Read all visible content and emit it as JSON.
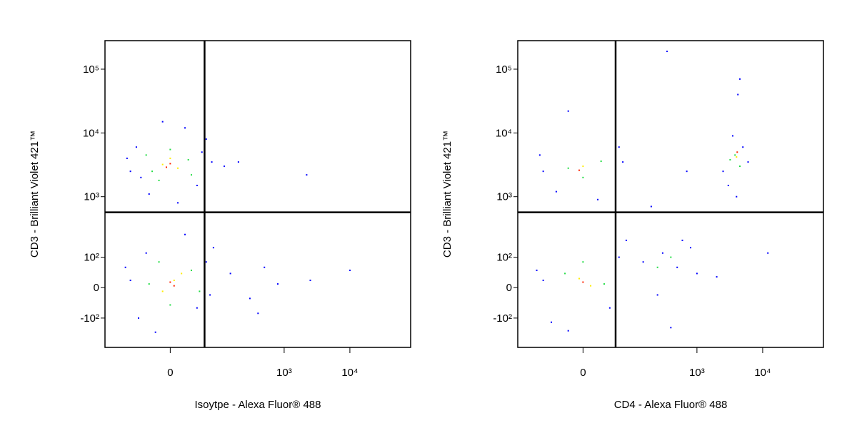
{
  "chart_data": [
    {
      "type": "scatter",
      "xlabel": "Isoytpe - Alexa Fluor® 488",
      "ylabel": "CD3 - Brilliant Violet 421™",
      "scale": "biexponential",
      "xlim": [
        -180,
        84000
      ],
      "ylim": [
        -320,
        280000
      ],
      "xticks": [
        0,
        {
          "value": 1000,
          "label": "10³"
        },
        {
          "value": 10000,
          "label": "10⁴"
        }
      ],
      "yticks": [
        {
          "value": -100,
          "label": "-10²"
        },
        0,
        {
          "value": 100,
          "label": "10²"
        },
        {
          "value": 1000,
          "label": "10³"
        },
        {
          "value": 10000,
          "label": "10⁴"
        },
        {
          "value": 100000,
          "label": "10⁵"
        }
      ],
      "gates": {
        "x": 56,
        "y": 567
      },
      "series": [
        {
          "color": "#0000ff",
          "x": [
            -70,
            -55,
            40,
            60,
            -30,
            20,
            -80,
            75,
            10,
            -45,
            50,
            -10,
            -70,
            60,
            -50,
            80,
            -20,
            40,
            -85,
            20,
            70,
            -35,
            150,
            300,
            500,
            800,
            2500,
            10000,
            120,
            200,
            2200,
            400
          ],
          "y": [
            2500,
            6000,
            1500,
            8000,
            1100,
            12000,
            4000,
            3500,
            800,
            2000,
            5000,
            15000,
            20,
            80,
            -100,
            150,
            -180,
            -60,
            60,
            250,
            -20,
            120,
            40,
            -30,
            60,
            10,
            20,
            50,
            3000,
            3500,
            2200,
            -80
          ]
        },
        {
          "color": "#22dd44",
          "x": [
            -25,
            25,
            0,
            -15,
            30,
            -35,
            -30,
            30,
            0,
            45,
            -15
          ],
          "y": [
            2500,
            3800,
            5500,
            1800,
            2200,
            4500,
            10,
            50,
            -50,
            -10,
            80
          ]
        },
        {
          "color": "#ffee00",
          "x": [
            -10,
            10,
            0,
            5,
            -10,
            15
          ],
          "y": [
            3200,
            2800,
            4000,
            20,
            -10,
            40
          ]
        },
        {
          "color": "#ff2200",
          "x": [
            0,
            -5,
            0,
            5
          ],
          "y": [
            3300,
            2900,
            15,
            5
          ]
        }
      ]
    },
    {
      "type": "scatter",
      "xlabel": "CD4 - Alexa Fluor® 488",
      "ylabel": "CD3 - Brilliant Violet 421™",
      "scale": "biexponential",
      "xlim": [
        -180,
        84000
      ],
      "ylim": [
        -320,
        280000
      ],
      "xticks": [
        0,
        {
          "value": 1000,
          "label": "10³"
        },
        {
          "value": 10000,
          "label": "10⁴"
        }
      ],
      "yticks": [
        {
          "value": -100,
          "label": "-10²"
        },
        0,
        {
          "value": 100,
          "label": "10²"
        },
        {
          "value": 1000,
          "label": "10³"
        },
        {
          "value": 10000,
          "label": "10⁴"
        },
        {
          "value": 100000,
          "label": "10⁵"
        }
      ],
      "gates": {
        "x": 52,
        "y": 567
      },
      "series": [
        {
          "color": "#0000ff",
          "x": [
            -70,
            60,
            -40,
            70,
            -80,
            20,
            -20,
            2500,
            3500,
            5000,
            3000,
            6000,
            4000,
            4200,
            4500,
            -70,
            60,
            -50,
            80,
            -20,
            40,
            -90,
            150,
            300,
            500,
            800,
            1000,
            250,
            600,
            400,
            12000,
            2000,
            350,
            200,
            700
          ],
          "y": [
            2500,
            6000,
            1200,
            3500,
            4500,
            900,
            22000,
            2500,
            9000,
            6000,
            1500,
            3500,
            1000,
            40000,
            70000,
            20,
            100,
            -120,
            200,
            -170,
            -60,
            50,
            80,
            120,
            60,
            150,
            40,
            -20,
            200,
            -150,
            120,
            30,
            190000,
            700,
            2500
          ]
        },
        {
          "color": "#22dd44",
          "x": [
            -20,
            25,
            0,
            3800,
            4500,
            3200,
            -25,
            30,
            0,
            400,
            250
          ],
          "y": [
            2800,
            3600,
            2000,
            4500,
            3000,
            3800,
            40,
            10,
            80,
            100,
            60
          ]
        },
        {
          "color": "#ffee00",
          "x": [
            0,
            4000,
            -5,
            10
          ],
          "y": [
            3000,
            4200,
            25,
            5
          ]
        },
        {
          "color": "#ff2200",
          "x": [
            -5,
            4100,
            0
          ],
          "y": [
            2600,
            5000,
            15
          ]
        }
      ]
    }
  ]
}
